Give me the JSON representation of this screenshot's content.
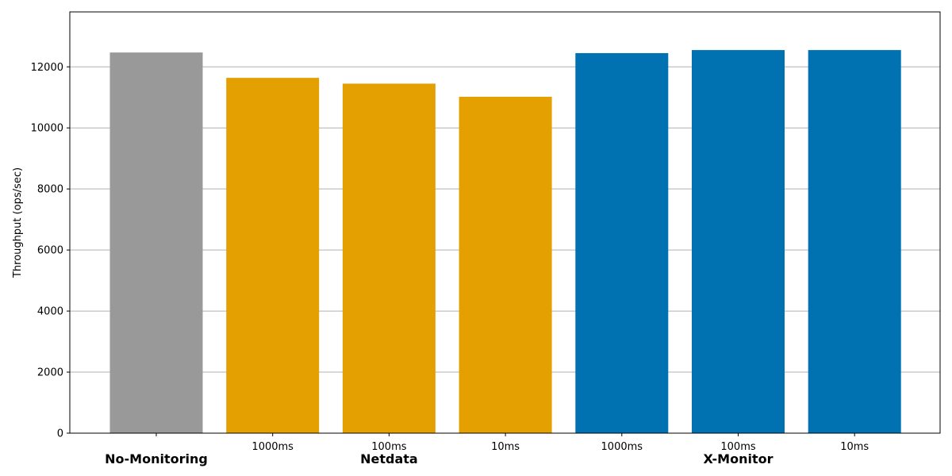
{
  "chart_data": {
    "type": "bar",
    "title": "",
    "xlabel": "",
    "ylabel": "Throughput (ops/sec)",
    "ylim": [
      0,
      13800
    ],
    "yticks": [
      0,
      2000,
      4000,
      6000,
      8000,
      10000,
      12000
    ],
    "grid": "horizontal",
    "categories": [
      "",
      "1000ms",
      "100ms",
      "10ms",
      "1000ms",
      "100ms",
      "10ms"
    ],
    "values": [
      12470,
      11640,
      11450,
      11020,
      12450,
      12550,
      12550
    ],
    "bar_groups": [
      "No-Monitoring",
      "Netdata",
      "Netdata",
      "Netdata",
      "X-Monitor",
      "X-Monitor",
      "X-Monitor"
    ],
    "groups": [
      {
        "name": "No-Monitoring",
        "color": "#999999"
      },
      {
        "name": "Netdata",
        "color": "#e3a000"
      },
      {
        "name": "X-Monitor",
        "color": "#0072b2"
      }
    ]
  }
}
